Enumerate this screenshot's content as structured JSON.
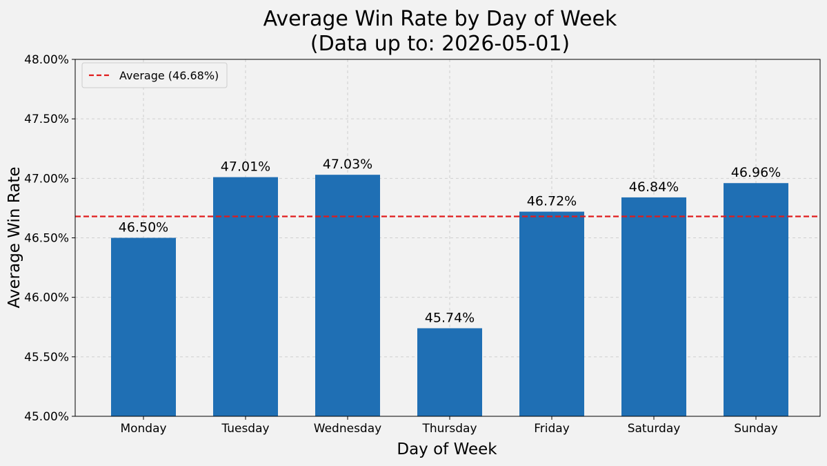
{
  "chart_data": {
    "type": "bar",
    "title_line1": "Average Win Rate by Day of Week",
    "title_line2": "(Data up to: 2026-05-01)",
    "xlabel": "Day of Week",
    "ylabel": "Average Win Rate",
    "categories": [
      "Monday",
      "Tuesday",
      "Wednesday",
      "Thursday",
      "Friday",
      "Saturday",
      "Sunday"
    ],
    "values": [
      46.5,
      47.01,
      47.03,
      45.74,
      46.72,
      46.84,
      46.96
    ],
    "data_labels": [
      "46.50%",
      "47.01%",
      "47.03%",
      "45.74%",
      "46.72%",
      "46.84%",
      "46.96%"
    ],
    "ylim": [
      45.0,
      48.0
    ],
    "yticks": [
      45.0,
      45.5,
      46.0,
      46.5,
      47.0,
      47.5,
      48.0
    ],
    "ytick_labels": [
      "45.00%",
      "45.50%",
      "46.00%",
      "46.50%",
      "47.00%",
      "47.50%",
      "48.00%"
    ],
    "average": 46.68,
    "legend_label": "Average (46.68%)",
    "legend_position": "top-left",
    "grid": true,
    "bar_color": "#1f6fb4",
    "average_line_color": "#e01b1b"
  }
}
